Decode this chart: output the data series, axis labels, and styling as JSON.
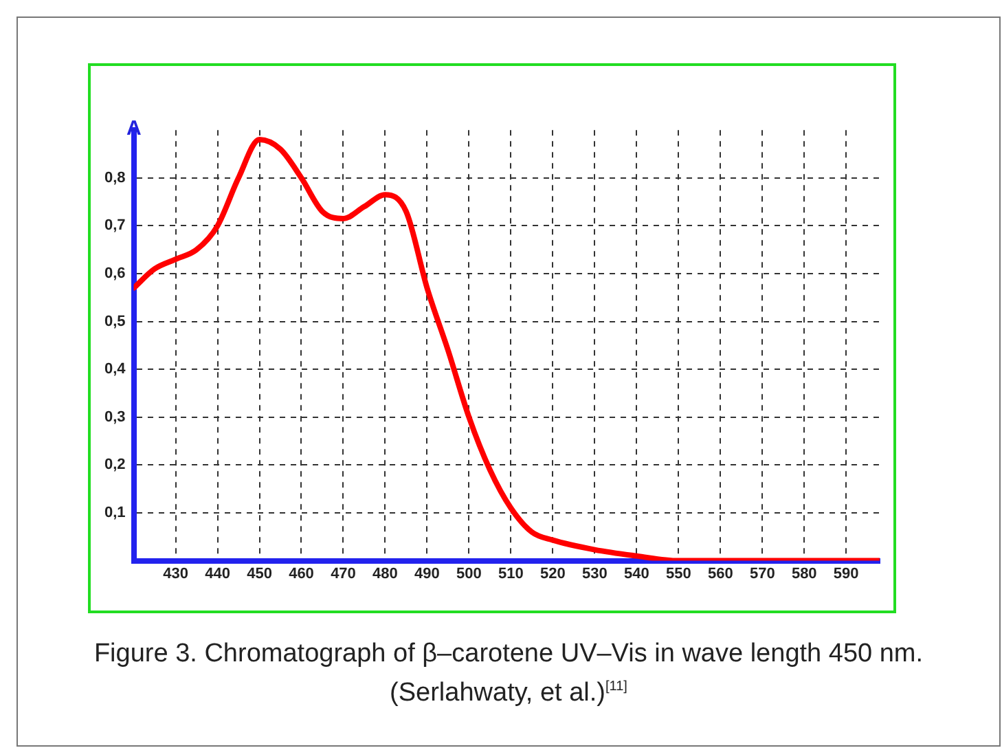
{
  "chart_data": {
    "type": "line",
    "ylabel": "A",
    "annotations": [
      "Figure 3. Chromatograph of β–carotene UV–Vis in wave length 450 nm. (Serlahwaty, et al.)$^{[11]}$"
    ],
    "x": [
      420,
      425,
      430,
      435,
      440,
      445,
      450,
      455,
      460,
      465,
      470,
      475,
      480,
      485,
      490,
      495,
      500,
      505,
      510,
      515,
      520,
      530,
      540,
      550,
      560,
      570,
      580,
      590,
      598
    ],
    "series": [
      {
        "color": "#ff0000",
        "values": [
          0.57,
          0.61,
          0.63,
          0.65,
          0.7,
          0.8,
          0.88,
          0.86,
          0.8,
          0.73,
          0.715,
          0.74,
          0.765,
          0.73,
          0.57,
          0.44,
          0.3,
          0.19,
          0.11,
          0.06,
          0.043,
          0.023,
          0.01,
          0,
          0,
          0,
          0,
          0,
          0
        ]
      }
    ],
    "xlim": [
      420,
      598
    ],
    "ylim": [
      0,
      0.9
    ],
    "xticks": [
      430,
      440,
      450,
      460,
      470,
      480,
      490,
      500,
      510,
      520,
      530,
      540,
      550,
      560,
      570,
      580,
      590
    ],
    "yticks": [
      {
        "value": 0.1,
        "label": "0,1"
      },
      {
        "value": 0.2,
        "label": "0,2"
      },
      {
        "value": 0.3,
        "label": "0,3"
      },
      {
        "value": 0.4,
        "label": "0,4"
      },
      {
        "value": 0.5,
        "label": "0,5"
      },
      {
        "value": 0.6,
        "label": "0,6"
      },
      {
        "value": 0.7,
        "label": "0,7"
      },
      {
        "value": 0.8,
        "label": "0,8"
      }
    ],
    "grid": true,
    "legend": false,
    "marker": "none",
    "line_style": "solid"
  }
}
